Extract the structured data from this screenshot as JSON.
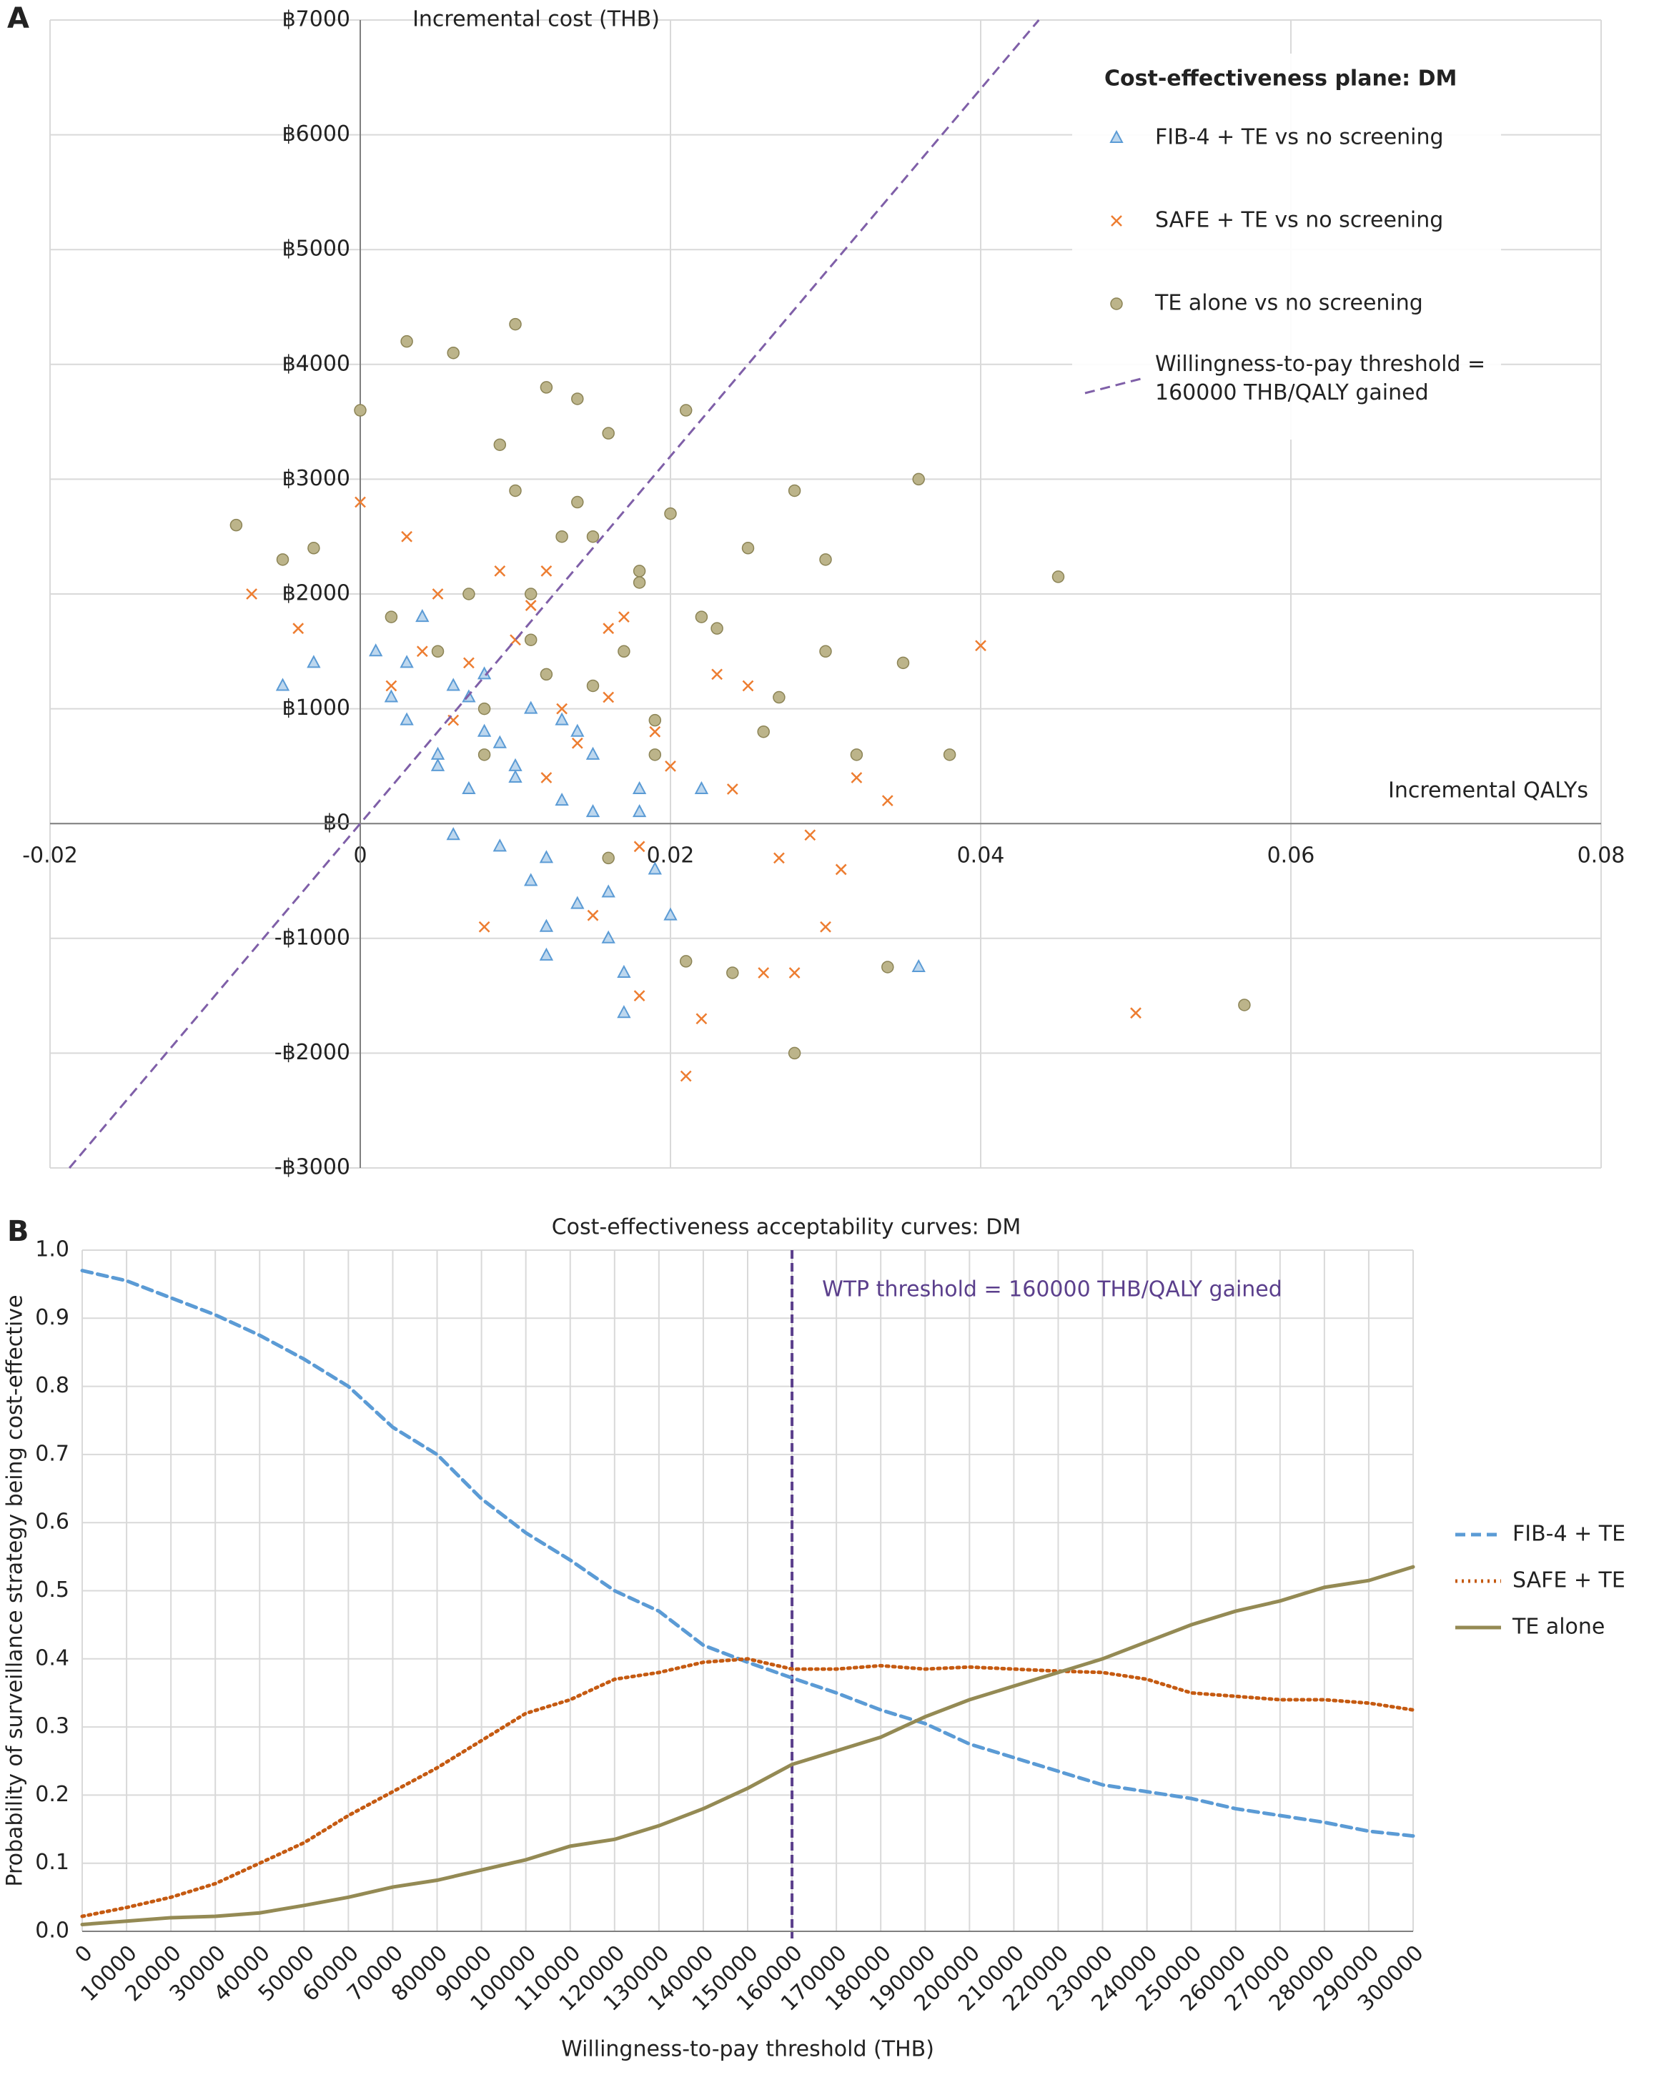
{
  "chart_data": [
    {
      "type": "scatter",
      "panel": "A",
      "legend_title": "Cost-effectiveness plane: DM",
      "y_label": "Incremental cost (THB)",
      "x_label": "Incremental QALYs",
      "xlim": [
        -0.02,
        0.08
      ],
      "xticks": [
        -0.02,
        0,
        0.02,
        0.04,
        0.06,
        0.08
      ],
      "ylim": [
        -3000,
        7000
      ],
      "yticks": [
        {
          "value": -3000,
          "label": "-฿3000"
        },
        {
          "value": -2000,
          "label": "-฿2000"
        },
        {
          "value": -1000,
          "label": "-฿1000"
        },
        {
          "value": 0,
          "label": "฿0"
        },
        {
          "value": 1000,
          "label": "฿1000"
        },
        {
          "value": 2000,
          "label": "฿2000"
        },
        {
          "value": 3000,
          "label": "฿3000"
        },
        {
          "value": 4000,
          "label": "฿4000"
        },
        {
          "value": 5000,
          "label": "฿5000"
        },
        {
          "value": 6000,
          "label": "฿6000"
        },
        {
          "value": 7000,
          "label": "฿7000"
        }
      ],
      "grid": true,
      "series": [
        {
          "name": "FIB-4 + TE vs no screening",
          "marker": "triangle",
          "color": "#5b9bd5",
          "x": [
            0.001,
            0.002,
            0.003,
            0.004,
            0.005,
            0.006,
            0.007,
            0.008,
            0.009,
            0.01,
            0.011,
            0.012,
            0.013,
            0.014,
            0.015,
            0.016,
            0.017,
            0.018,
            0.019,
            0.02,
            0.022,
            0.003,
            0.005,
            0.007,
            0.009,
            0.011,
            0.013,
            0.015,
            0.006,
            0.008,
            0.01,
            0.012,
            0.014,
            0.016,
            0.018,
            -0.003,
            -0.005,
            0.036,
            0.017,
            0.012
          ],
          "values": [
            1500,
            1100,
            900,
            1800,
            600,
            1200,
            300,
            800,
            -200,
            500,
            1000,
            -300,
            200,
            -700,
            600,
            -1000,
            -1300,
            300,
            -400,
            -800,
            300,
            1400,
            500,
            1100,
            700,
            -500,
            900,
            100,
            -100,
            1300,
            400,
            -900,
            800,
            -600,
            100,
            1400,
            1200,
            -1250,
            -1650,
            -1150
          ]
        },
        {
          "name": "SAFE + TE vs no screening",
          "marker": "x",
          "color": "#ed7d31",
          "x": [
            -0.007,
            -0.004,
            0.0,
            0.002,
            0.004,
            0.006,
            0.008,
            0.01,
            0.012,
            0.014,
            0.016,
            0.018,
            0.02,
            0.022,
            0.024,
            0.026,
            0.028,
            0.03,
            0.032,
            0.034,
            0.04,
            0.05,
            0.021,
            0.023,
            0.019,
            0.011,
            0.009,
            0.013,
            0.015,
            0.017,
            0.025,
            0.027,
            0.005,
            0.007,
            0.031,
            0.003,
            0.029,
            0.018,
            0.012,
            0.016
          ],
          "values": [
            2000,
            1700,
            2800,
            1200,
            1500,
            900,
            -900,
            1600,
            2200,
            700,
            1100,
            -1500,
            500,
            -1700,
            300,
            -1300,
            -1300,
            -900,
            400,
            200,
            1550,
            -1650,
            -2200,
            1300,
            800,
            1900,
            2200,
            1000,
            -800,
            1800,
            1200,
            -300,
            2000,
            1400,
            -400,
            2500,
            -100,
            -200,
            400,
            1700
          ]
        },
        {
          "name": "TE alone vs no screening",
          "marker": "circle",
          "color": "#bcb48a",
          "x": [
            -0.008,
            -0.005,
            -0.003,
            0.0,
            0.002,
            0.003,
            0.005,
            0.006,
            0.008,
            0.009,
            0.01,
            0.011,
            0.012,
            0.013,
            0.014,
            0.015,
            0.016,
            0.017,
            0.018,
            0.019,
            0.02,
            0.021,
            0.022,
            0.024,
            0.026,
            0.028,
            0.03,
            0.032,
            0.034,
            0.036,
            0.038,
            0.045,
            0.057,
            0.028,
            0.021,
            0.016,
            0.012,
            0.008,
            0.025,
            0.03,
            0.035,
            0.014,
            0.01,
            0.018,
            0.023,
            0.027,
            0.007,
            0.019,
            0.011,
            0.015
          ],
          "values": [
            2600,
            2300,
            2400,
            3600,
            1800,
            4200,
            1500,
            4100,
            1000,
            3300,
            4350,
            2000,
            3800,
            2500,
            2800,
            1200,
            3400,
            1500,
            2200,
            900,
            2700,
            -1200,
            1800,
            -1300,
            800,
            -2000,
            1500,
            600,
            -1250,
            3000,
            600,
            2150,
            -1580,
            2900,
            3600,
            -300,
            1300,
            600,
            2400,
            2300,
            1400,
            3700,
            2900,
            2100,
            1700,
            1100,
            2000,
            600,
            1600,
            2500
          ]
        }
      ],
      "lines": [
        {
          "name": "Willingness-to-pay threshold = 160000 THB/QALY gained",
          "color": "#7f5fa8",
          "dash": "dashed",
          "x": [
            -0.01875,
            0.04375
          ],
          "values": [
            -3000,
            7000
          ]
        }
      ]
    },
    {
      "type": "line",
      "panel": "B",
      "title": "Cost-effectiveness acceptability curves: DM",
      "x_label": "Willingness-to-pay threshold (THB)",
      "y_label": "Probability of surveillance strategy being cost-effective",
      "xlim": [
        0,
        300000
      ],
      "xticks": [
        0,
        10000,
        20000,
        30000,
        40000,
        50000,
        60000,
        70000,
        80000,
        90000,
        100000,
        110000,
        120000,
        130000,
        140000,
        150000,
        160000,
        170000,
        180000,
        190000,
        200000,
        210000,
        220000,
        230000,
        240000,
        250000,
        260000,
        270000,
        280000,
        290000,
        300000
      ],
      "ylim": [
        0,
        1
      ],
      "yticks": [
        {
          "value": 0,
          "label": "0.0"
        },
        0.1,
        0.2,
        0.3,
        0.4,
        0.5,
        0.6,
        0.7,
        0.8,
        0.9,
        {
          "value": 1,
          "label": "1.0"
        }
      ],
      "grid": true,
      "annotation": {
        "x": 160000,
        "label": "WTP threshold = 160000 THB/QALY gained",
        "color": "#5b3f8c"
      },
      "x": [
        0,
        10000,
        20000,
        30000,
        40000,
        50000,
        60000,
        70000,
        80000,
        90000,
        100000,
        110000,
        120000,
        130000,
        140000,
        150000,
        160000,
        170000,
        180000,
        190000,
        200000,
        210000,
        220000,
        230000,
        240000,
        250000,
        260000,
        270000,
        280000,
        290000,
        300000
      ],
      "series": [
        {
          "name": "FIB-4 + TE",
          "color": "#5b9bd5",
          "dash": "dashed",
          "values": [
            0.97,
            0.955,
            0.93,
            0.905,
            0.875,
            0.84,
            0.8,
            0.74,
            0.7,
            0.635,
            0.585,
            0.545,
            0.5,
            0.47,
            0.42,
            0.395,
            0.372,
            0.35,
            0.325,
            0.305,
            0.275,
            0.255,
            0.235,
            0.215,
            0.205,
            0.195,
            0.18,
            0.17,
            0.16,
            0.147,
            0.14
          ]
        },
        {
          "name": "SAFE + TE",
          "color": "#c55a11",
          "dash": "dotted",
          "values": [
            0.022,
            0.035,
            0.05,
            0.07,
            0.1,
            0.13,
            0.17,
            0.205,
            0.24,
            0.28,
            0.32,
            0.34,
            0.37,
            0.38,
            0.395,
            0.4,
            0.385,
            0.385,
            0.39,
            0.385,
            0.388,
            0.385,
            0.382,
            0.38,
            0.37,
            0.35,
            0.345,
            0.34,
            0.34,
            0.335,
            0.325
          ]
        },
        {
          "name": "TE alone",
          "color": "#948a54",
          "dash": "solid",
          "values": [
            0.01,
            0.015,
            0.02,
            0.022,
            0.027,
            0.038,
            0.05,
            0.065,
            0.075,
            0.09,
            0.105,
            0.125,
            0.135,
            0.155,
            0.18,
            0.21,
            0.245,
            0.265,
            0.285,
            0.315,
            0.34,
            0.36,
            0.38,
            0.4,
            0.425,
            0.45,
            0.47,
            0.485,
            0.505,
            0.515,
            0.535
          ]
        }
      ]
    }
  ]
}
